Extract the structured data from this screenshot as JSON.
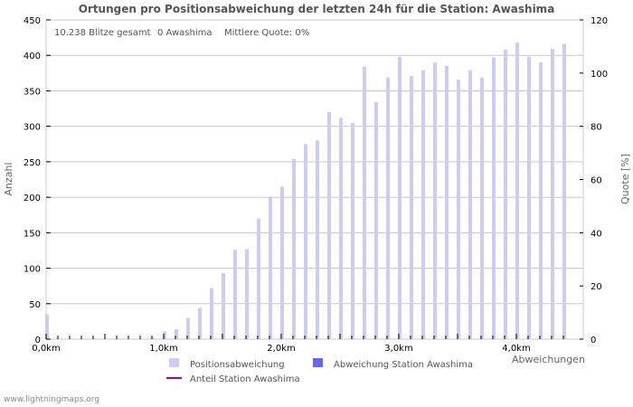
{
  "chart_data": {
    "type": "bar",
    "title": "Ortungen pro Positionsabweichung der letzten 24h für die Station: Awashima",
    "xlabel": "Abweichungen",
    "ylabel": "Anzahl",
    "y2label": "Quote [%]",
    "ylim": [
      0,
      450
    ],
    "y2lim": [
      0,
      120
    ],
    "yticks": [
      0,
      50,
      100,
      150,
      200,
      250,
      300,
      350,
      400,
      450
    ],
    "y2ticks": [
      0,
      20,
      40,
      60,
      80,
      100,
      120
    ],
    "xtick_labels": [
      "0,0km",
      "1,0km",
      "2,0km",
      "3,0km",
      "4,0km"
    ],
    "grid": true,
    "categories_km": [
      0.0,
      0.1,
      0.2,
      0.3,
      0.4,
      0.5,
      0.6,
      0.7,
      0.8,
      0.9,
      1.0,
      1.1,
      1.2,
      1.3,
      1.4,
      1.5,
      1.6,
      1.7,
      1.8,
      1.9,
      2.0,
      2.1,
      2.2,
      2.3,
      2.4,
      2.5,
      2.6,
      2.7,
      2.8,
      2.9,
      3.0,
      3.1,
      3.2,
      3.3,
      3.4,
      3.5,
      3.6,
      3.7,
      3.8,
      3.9,
      4.0,
      4.1,
      4.2,
      4.3,
      4.4
    ],
    "series": [
      {
        "name": "Positionsabweichung",
        "color": "#ccccf5",
        "values": [
          35,
          0,
          0,
          0,
          0,
          0,
          1,
          0,
          0,
          2,
          11,
          14,
          30,
          44,
          72,
          93,
          126,
          127,
          170,
          200,
          215,
          254,
          275,
          280,
          320,
          312,
          305,
          384,
          334,
          369,
          398,
          371,
          379,
          390,
          385,
          366,
          379,
          369,
          397,
          408,
          418,
          398,
          390,
          409,
          416
        ]
      },
      {
        "name": "Abweichung Station Awashima",
        "color": "#6666ee",
        "values": [
          0,
          0,
          0,
          0,
          0,
          0,
          0,
          0,
          0,
          0,
          0,
          0,
          0,
          0,
          0,
          0,
          0,
          0,
          0,
          0,
          0,
          0,
          0,
          0,
          0,
          0,
          0,
          0,
          0,
          0,
          0,
          0,
          0,
          0,
          0,
          0,
          0,
          0,
          0,
          0,
          0,
          0,
          0,
          0,
          0
        ]
      },
      {
        "name": "Anteil Station Awashima",
        "color": "#9900cc",
        "type": "line",
        "values": [
          0,
          0,
          0,
          0,
          0,
          0,
          0,
          0,
          0,
          0,
          0,
          0,
          0,
          0,
          0,
          0,
          0,
          0,
          0,
          0,
          0,
          0,
          0,
          0,
          0,
          0,
          0,
          0,
          0,
          0,
          0,
          0,
          0,
          0,
          0,
          0,
          0,
          0,
          0,
          0,
          0,
          0,
          0,
          0,
          0
        ]
      }
    ],
    "legend_position": "bottom"
  },
  "info": {
    "total": "10.238 Blitze gesamt",
    "station": "0 Awashima",
    "quote": "Mittlere Quote: 0%"
  },
  "footer": "www.lightningmaps.org"
}
